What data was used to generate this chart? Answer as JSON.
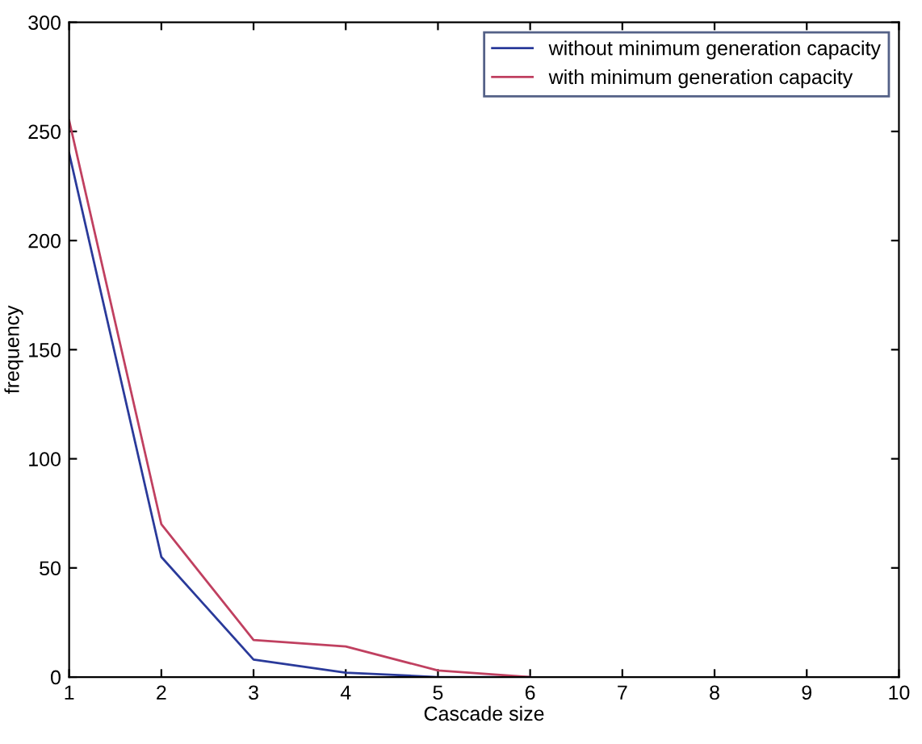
{
  "chart_data": {
    "type": "line",
    "xlabel": "Cascade size",
    "ylabel": "frequency",
    "x": [
      1,
      2,
      3,
      4,
      5,
      6
    ],
    "series": [
      {
        "name": "without minimum generation capacity",
        "color": "#2a3a9a",
        "values": [
          240,
          55,
          8,
          2,
          0,
          0
        ]
      },
      {
        "name": "with minimum generation capacity",
        "color": "#c04060",
        "values": [
          255,
          70,
          17,
          14,
          3,
          0
        ]
      }
    ],
    "xlim": [
      1,
      10
    ],
    "xticks": [
      1,
      2,
      3,
      4,
      5,
      6,
      7,
      8,
      9,
      10
    ],
    "ylim": [
      0,
      300
    ],
    "yticks": [
      0,
      50,
      100,
      150,
      200,
      250,
      300
    ],
    "grid": false,
    "legend": "top right"
  }
}
